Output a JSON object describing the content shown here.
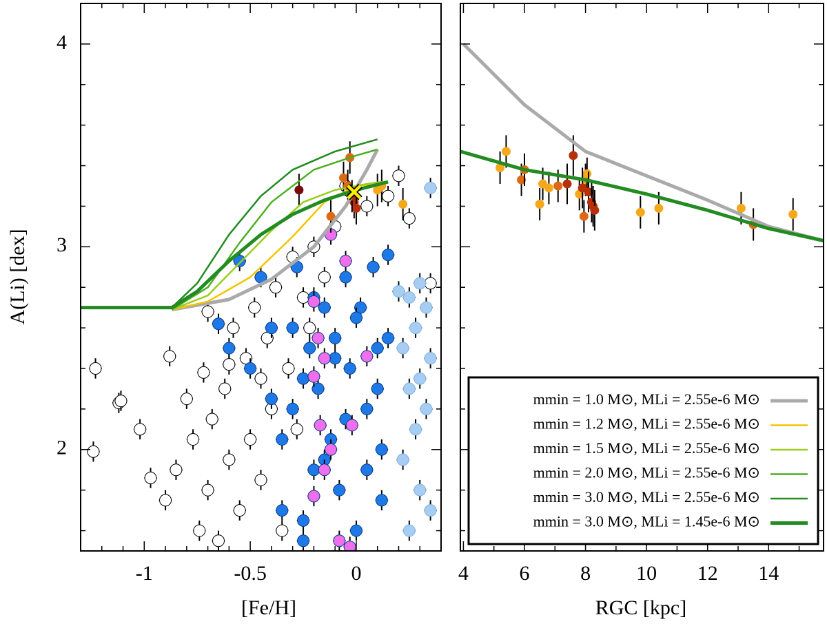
{
  "chart_data": [
    {
      "type": "scatter",
      "xlabel": "[Fe/H]",
      "ylabel": "A(Li) [dex]",
      "xlim": [
        -1.3,
        0.4
      ],
      "ylim": [
        1.5,
        4.2
      ],
      "xticks": [
        -1,
        -0.5,
        0
      ],
      "yticks": [
        2,
        3,
        4
      ],
      "xminor": [
        -1.2,
        -1.1,
        -0.9,
        -0.8,
        -0.7,
        -0.6,
        -0.4,
        -0.3,
        -0.2,
        -0.1,
        0.1,
        0.2,
        0.3
      ],
      "yminor": [
        1.6,
        1.8,
        2.2,
        2.4,
        2.6,
        2.8,
        3.2,
        3.4,
        3.6,
        3.8,
        4.2
      ],
      "series": [
        {
          "kind": "points",
          "color": "#ffffff",
          "xerr": 0.03,
          "yerr": 0.05,
          "x": [
            -1.24,
            -1.23,
            -1.12,
            -1.11,
            -1.02,
            -0.97,
            -0.9,
            -0.88,
            -0.85,
            -0.8,
            -0.77,
            -0.74,
            -0.72,
            -0.7,
            -0.68,
            -0.65,
            -0.62,
            -0.6,
            -0.58,
            -0.55,
            -0.52,
            -0.5,
            -0.48,
            -0.45,
            -0.42,
            -0.4,
            -0.38,
            -0.35,
            -0.32,
            -0.3,
            -0.28,
            -0.25,
            -0.22,
            -0.2,
            -0.15,
            -0.1,
            -0.05,
            0.05,
            0.15,
            0.2,
            0.35,
            0.25,
            -0.6,
            -0.7,
            -0.45
          ],
          "y": [
            1.99,
            2.4,
            2.23,
            2.24,
            2.1,
            1.86,
            1.75,
            2.46,
            1.9,
            2.25,
            2.05,
            1.6,
            2.38,
            1.8,
            2.15,
            1.55,
            2.3,
            1.95,
            2.6,
            1.7,
            2.45,
            2.05,
            2.7,
            1.85,
            2.55,
            2.2,
            2.8,
            1.6,
            2.4,
            2.95,
            2.1,
            2.75,
            2.6,
            3.0,
            2.85,
            3.1,
            3.3,
            3.2,
            3.25,
            3.35,
            2.82,
            3.14,
            2.42,
            2.68,
            2.35
          ]
        },
        {
          "kind": "points",
          "color": "#1e78e6",
          "xerr": 0.03,
          "yerr": 0.05,
          "x": [
            -0.55,
            -0.65,
            -0.6,
            -0.5,
            -0.45,
            -0.4,
            -0.35,
            -0.3,
            -0.28,
            -0.25,
            -0.22,
            -0.2,
            -0.18,
            -0.15,
            -0.12,
            -0.1,
            -0.08,
            -0.05,
            -0.03,
            0,
            0.02,
            0.05,
            0.08,
            0.1,
            0.12,
            0.15,
            -0.35,
            -0.3,
            -0.25,
            -0.15,
            -0.1,
            -0.05,
            0,
            0.05,
            0.1,
            0.15,
            -0.2,
            -0.4,
            0.12,
            -0.25
          ],
          "y": [
            2.93,
            2.62,
            2.5,
            2.4,
            2.85,
            2.6,
            1.7,
            2.2,
            2.9,
            1.55,
            2.5,
            1.9,
            2.3,
            2.7,
            2.05,
            2.55,
            1.8,
            2.85,
            2.4,
            1.6,
            2.7,
            2.2,
            2.9,
            2.5,
            1.75,
            2.96,
            2.05,
            2.6,
            2.35,
            1.95,
            2.45,
            2.15,
            2.65,
            1.9,
            2.3,
            2.55,
            2.75,
            2.25,
            2.0,
            1.65
          ]
        },
        {
          "kind": "points",
          "color": "#ee6eee",
          "xerr": 0.03,
          "yerr": 0.05,
          "x": [
            -0.12,
            -0.2,
            -0.18,
            -0.15,
            -0.2,
            -0.17,
            -0.12,
            -0.05,
            0.05,
            -0.02,
            -0.15,
            -0.2,
            -0.08,
            -0.03
          ],
          "y": [
            3.06,
            2.73,
            2.55,
            2.45,
            2.36,
            2.12,
            2.0,
            2.93,
            2.46,
            2.12,
            1.9,
            1.77,
            1.55,
            1.52
          ]
        },
        {
          "kind": "points",
          "color": "#a8cdf2",
          "xerr": 0.03,
          "yerr": 0.05,
          "x": [
            0.35,
            0.3,
            0.25,
            0.33,
            0.28,
            0.22,
            0.35,
            0.3,
            0.25,
            0.33,
            0.28,
            0.22,
            0.3,
            0.35,
            0.25,
            0.2
          ],
          "y": [
            3.29,
            2.82,
            2.75,
            2.7,
            2.6,
            2.5,
            2.45,
            2.35,
            2.3,
            2.2,
            2.1,
            1.95,
            1.8,
            1.7,
            1.6,
            2.78
          ]
        },
        {
          "kind": "points",
          "color": "#f5a81c",
          "xerr": 0,
          "yerr": 0.08,
          "x": [
            0.12,
            0.1,
            0.22
          ],
          "y": [
            3.3,
            3.28,
            3.21
          ]
        },
        {
          "kind": "points",
          "color": "#dc6a14",
          "xerr": 0,
          "yerr": 0.08,
          "x": [
            -0.06,
            -0.03,
            -0.12,
            -0.04
          ],
          "y": [
            3.34,
            3.44,
            3.15,
            3.3
          ]
        },
        {
          "kind": "points",
          "color": "#b8300a",
          "xerr": 0,
          "yerr": 0.08,
          "x": [
            -0.01,
            0.0,
            -0.02
          ],
          "y": [
            3.22,
            3.19,
            3.25
          ]
        },
        {
          "kind": "points",
          "color": "#7a0a0a",
          "xerr": 0,
          "yerr": 0.08,
          "x": [
            -0.27
          ],
          "y": [
            3.28
          ]
        },
        {
          "kind": "line",
          "name": "mmin = 1.0 M⊙, MLi = 2.55e-6 M⊙",
          "color": "#aaaaaa",
          "width": 5,
          "x": [
            -0.87,
            -0.6,
            -0.4,
            -0.2,
            -0.05,
            0.05,
            0.1
          ],
          "y": [
            2.69,
            2.74,
            2.84,
            3.0,
            3.2,
            3.38,
            3.48
          ]
        },
        {
          "kind": "line",
          "name": "mmin = 1.2 M⊙, MLi = 2.55e-6 M⊙",
          "color": "#f5c400",
          "width": 2.5,
          "x": [
            -0.87,
            -0.7,
            -0.5,
            -0.3,
            -0.15,
            0,
            0.1
          ],
          "y": [
            2.69,
            2.73,
            2.85,
            3.05,
            3.22,
            3.3,
            3.31
          ]
        },
        {
          "kind": "line",
          "name": "mmin = 1.5 M⊙, MLi = 2.55e-6 M⊙",
          "color": "#9acd1e",
          "width": 2.5,
          "x": [
            -0.87,
            -0.7,
            -0.55,
            -0.4,
            -0.25,
            -0.1,
            0.05,
            0.12
          ],
          "y": [
            2.69,
            2.76,
            2.92,
            3.08,
            3.22,
            3.28,
            3.31,
            3.32
          ]
        },
        {
          "kind": "line",
          "name": "mmin = 2.0 M⊙, MLi = 2.55e-6 M⊙",
          "color": "#4daf22",
          "width": 2.5,
          "x": [
            -0.87,
            -0.7,
            -0.55,
            -0.4,
            -0.2,
            0,
            0.1
          ],
          "y": [
            2.69,
            2.8,
            3.02,
            3.22,
            3.38,
            3.45,
            3.48
          ]
        },
        {
          "kind": "line",
          "name": "mmin = 3.0 M⊙, MLi = 2.55e-6 M⊙",
          "color": "#228b22",
          "width": 2.5,
          "x": [
            -1.3,
            -0.87,
            -0.75,
            -0.6,
            -0.45,
            -0.3,
            -0.1,
            0.1
          ],
          "y": [
            2.7,
            2.7,
            2.82,
            3.06,
            3.25,
            3.38,
            3.47,
            3.53
          ]
        },
        {
          "kind": "line",
          "name": "mmin = 3.0 M⊙, MLi = 1.45e-6 M⊙",
          "color": "#228b22",
          "width": 5,
          "x": [
            -1.3,
            -0.87,
            -0.75,
            -0.6,
            -0.45,
            -0.3,
            -0.15,
            0,
            0.15
          ],
          "y": [
            2.7,
            2.7,
            2.78,
            2.93,
            3.06,
            3.16,
            3.23,
            3.28,
            3.32
          ]
        }
      ],
      "sun": {
        "x": -0.01,
        "y": 3.27,
        "color": "#ffee00"
      }
    },
    {
      "type": "scatter",
      "xlabel": "RGC [kpc]",
      "xlim": [
        3.9,
        15.8
      ],
      "ylim": [
        1.5,
        4.2
      ],
      "xticks": [
        4,
        6,
        8,
        10,
        12,
        14
      ],
      "yticks": [
        2,
        3,
        4
      ],
      "xminor": [
        5,
        7,
        9,
        11,
        13,
        15
      ],
      "yminor": [
        1.6,
        1.8,
        2.2,
        2.4,
        2.6,
        2.8,
        3.2,
        3.4,
        3.6,
        3.8,
        4.2
      ],
      "series": [
        {
          "kind": "points",
          "color": "#f5a81c",
          "xerr": 0,
          "yerr": 0.08,
          "x": [
            5.2,
            5.4,
            6.5,
            6.6,
            6.8,
            7.8,
            8.0,
            8.05,
            9.8,
            10.4,
            13.1,
            14.8
          ],
          "y": [
            3.39,
            3.47,
            3.21,
            3.31,
            3.29,
            3.26,
            3.33,
            3.36,
            3.17,
            3.19,
            3.19,
            3.16
          ]
        },
        {
          "kind": "points",
          "color": "#dc6a14",
          "xerr": 0,
          "yerr": 0.08,
          "x": [
            5.9,
            6.0,
            7.1,
            7.95,
            13.5
          ],
          "y": [
            3.33,
            3.38,
            3.3,
            3.15,
            3.11
          ]
        },
        {
          "kind": "points",
          "color": "#b8300a",
          "xerr": 0,
          "yerr": 0.1,
          "x": [
            7.4,
            7.6,
            7.9,
            8.1,
            8.2,
            8.25,
            8.3
          ],
          "y": [
            3.31,
            3.45,
            3.29,
            3.27,
            3.22,
            3.2,
            3.18
          ]
        },
        {
          "kind": "line",
          "color": "#aaaaaa",
          "width": 5,
          "x": [
            4,
            6,
            8,
            10,
            12,
            14,
            15.8
          ],
          "y": [
            4.0,
            3.7,
            3.47,
            3.35,
            3.23,
            3.1,
            3.03
          ]
        },
        {
          "kind": "line",
          "color": "#228b22",
          "width": 5,
          "x": [
            3.9,
            6,
            8,
            10,
            12,
            14,
            15.8
          ],
          "y": [
            3.47,
            3.38,
            3.33,
            3.26,
            3.18,
            3.09,
            3.03
          ]
        }
      ]
    }
  ]
}
